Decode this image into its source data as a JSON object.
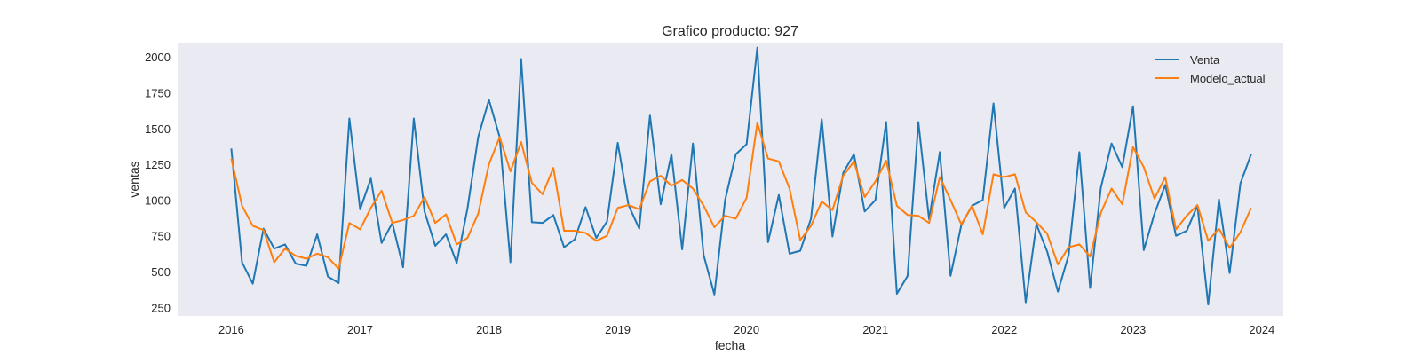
{
  "chart_data": {
    "type": "line",
    "title": "Grafico producto: 927",
    "xlabel": "fecha",
    "ylabel": "ventas",
    "x_start": "2016-01",
    "xlim": [
      "2015-08",
      "2024-03"
    ],
    "ylim": [
      190,
      2100
    ],
    "x_ticks": [
      "2016",
      "2017",
      "2018",
      "2019",
      "2020",
      "2021",
      "2022",
      "2023",
      "2024"
    ],
    "y_ticks": [
      250,
      500,
      750,
      1000,
      1250,
      1500,
      1750,
      2000
    ],
    "grid": false,
    "legend": "top-right",
    "background": "#eaeaf2",
    "series": [
      {
        "name": "Venta",
        "color": "#1f77b4",
        "values": [
          1360,
          565,
          415,
          800,
          660,
          690,
          555,
          540,
          760,
          465,
          420,
          1570,
          935,
          1150,
          700,
          840,
          530,
          1570,
          920,
          680,
          760,
          560,
          940,
          1440,
          1700,
          1440,
          565,
          1985,
          845,
          840,
          895,
          670,
          725,
          950,
          735,
          850,
          1400,
          965,
          800,
          1590,
          970,
          1320,
          655,
          1395,
          615,
          340,
          1000,
          1320,
          1390,
          2065,
          705,
          1035,
          625,
          645,
          870,
          1565,
          745,
          1190,
          1320,
          920,
          1000,
          1545,
          345,
          470,
          1545,
          865,
          1335,
          470,
          825,
          960,
          1000,
          1675,
          945,
          1080,
          285,
          830,
          640,
          360,
          615,
          1335,
          385,
          1085,
          1395,
          1230,
          1655,
          650,
          905,
          1105,
          750,
          785,
          960,
          270,
          1005,
          490,
          1115,
          1320
        ]
      },
      {
        "name": "Modelo_actual",
        "color": "#ff7f0e",
        "values": [
          1290,
          960,
          820,
          790,
          565,
          660,
          610,
          590,
          625,
          600,
          520,
          840,
          795,
          945,
          1065,
          840,
          860,
          890,
          1020,
          840,
          900,
          690,
          735,
          905,
          1250,
          1440,
          1200,
          1405,
          1120,
          1040,
          1225,
          785,
          785,
          770,
          715,
          750,
          945,
          965,
          935,
          1130,
          1170,
          1100,
          1140,
          1080,
          960,
          810,
          890,
          870,
          1015,
          1540,
          1290,
          1270,
          1080,
          720,
          820,
          990,
          930,
          1170,
          1270,
          1020,
          1130,
          1275,
          960,
          895,
          890,
          840,
          1160,
          1000,
          830,
          960,
          760,
          1180,
          1160,
          1180,
          915,
          845,
          765,
          550,
          670,
          690,
          605,
          910,
          1080,
          970,
          1370,
          1230,
          1010,
          1160,
          795,
          890,
          965,
          715,
          800,
          665,
          775,
          945
        ]
      }
    ]
  }
}
